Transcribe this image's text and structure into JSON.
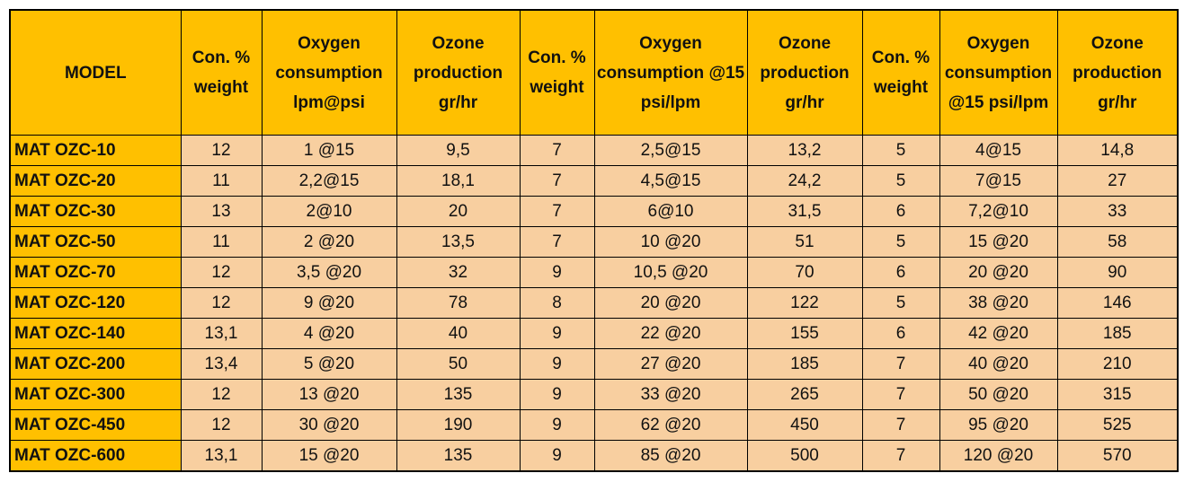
{
  "table": {
    "header": [
      "MODEL",
      "Con. % weight",
      "Oxygen consumption lpm@psi",
      "Ozone production gr/hr",
      "Con. % weight",
      "Oxygen consumption @15 psi/lpm",
      "Ozone production gr/hr",
      "Con. % weight",
      "Oxygen consumption @15 psi/lpm",
      "Ozone production gr/hr"
    ],
    "rows": [
      [
        "MAT OZC-10",
        "12",
        "1 @15",
        "9,5",
        "7",
        "2,5@15",
        "13,2",
        "5",
        "4@15",
        "14,8"
      ],
      [
        "MAT OZC-20",
        "11",
        "2,2@15",
        "18,1",
        "7",
        "4,5@15",
        "24,2",
        "5",
        "7@15",
        "27"
      ],
      [
        "MAT OZC-30",
        "13",
        "2@10",
        "20",
        "7",
        "6@10",
        "31,5",
        "6",
        "7,2@10",
        "33"
      ],
      [
        "MAT OZC-50",
        "11",
        "2 @20",
        "13,5",
        "7",
        "10 @20",
        "51",
        "5",
        "15 @20",
        "58"
      ],
      [
        "MAT OZC-70",
        "12",
        "3,5 @20",
        "32",
        "9",
        "10,5 @20",
        "70",
        "6",
        "20 @20",
        "90"
      ],
      [
        "MAT OZC-120",
        "12",
        "9 @20",
        "78",
        "8",
        "20 @20",
        "122",
        "5",
        "38 @20",
        "146"
      ],
      [
        "MAT OZC-140",
        "13,1",
        "4 @20",
        "40",
        "9",
        "22 @20",
        "155",
        "6",
        "42 @20",
        "185"
      ],
      [
        "MAT OZC-200",
        "13,4",
        "5 @20",
        "50",
        "9",
        "27 @20",
        "185",
        "7",
        "40 @20",
        "210"
      ],
      [
        "MAT OZC-300",
        "12",
        "13 @20",
        "135",
        "9",
        "33 @20",
        "265",
        "7",
        "50 @20",
        "315"
      ],
      [
        "MAT OZC-450",
        "12",
        "30 @20",
        "190",
        "9",
        "62 @20",
        "450",
        "7",
        "95 @20",
        "525"
      ],
      [
        "MAT OZC-600",
        "13,1",
        "15 @20",
        "135",
        "9",
        "85 @20",
        "500",
        "7",
        "120 @20",
        "570"
      ]
    ]
  }
}
